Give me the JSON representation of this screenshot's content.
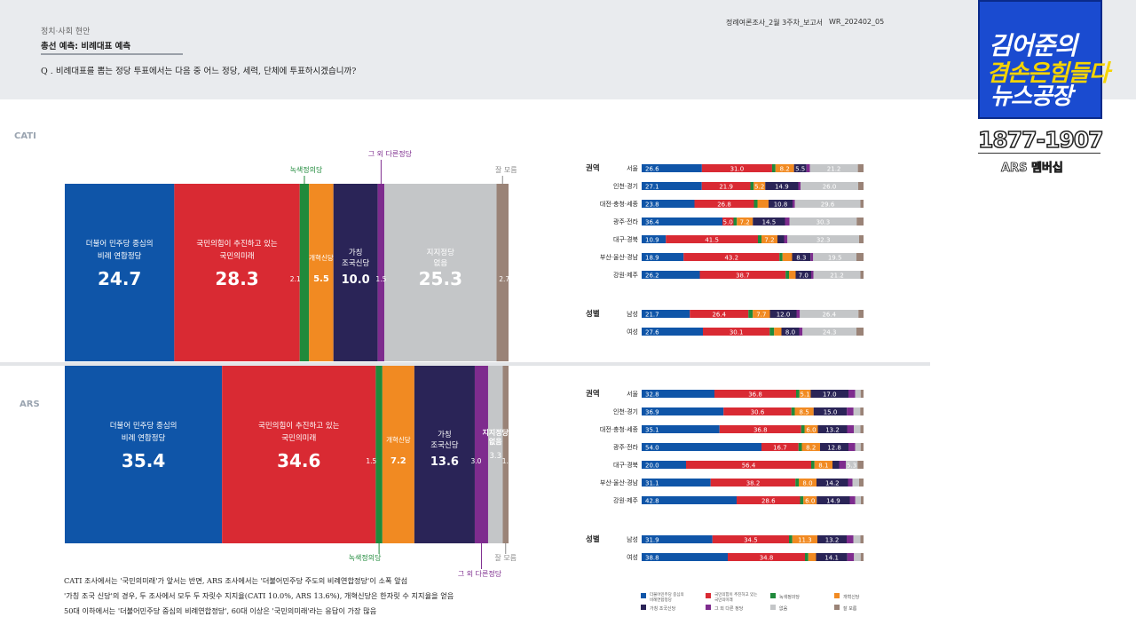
{
  "header": {
    "category": "정치·사회 현안",
    "subtitle": "총선 예측: 비례대표 예측",
    "question": "Q . 비례대표를 뽑는 정당 투표에서는 다음 중 어느 정당, 세력, 단체에 투표하시겠습니까?",
    "doc_title": "정례여론조사_2월 3주차_보고서",
    "doc_code": "WR_202402_05"
  },
  "logo": {
    "line1": "김어준의",
    "line2": "겸손은힘들다",
    "line3": "뉴스공장",
    "phone": "1877-1907",
    "member": "ARS 멤버십"
  },
  "notes": [
    "CATI 조사에서는 '국민의미래'가 앞서는 반면, ARS 조사에서는 '더불어민주당 주도의 비례연합정당'이 소폭 앞섬",
    "'가칭 조국 신당'의 경우, 두 조사에서 모두 두 자릿수 지지율(CATI 10.0%, ARS 13.6%), 개혁신당은 한자릿 수 지지율을 얻음",
    "50대 이하에서는 '더불어민주당 중심의 비례연합정당', 60대 이상은 '국민의미래'라는 응답이 가장 많음"
  ],
  "colors": [
    "#0f55a8",
    "#d92a33",
    "#1f8a3b",
    "#f18a22",
    "#2a2457",
    "#7e2c8e",
    "#c4c6c8",
    "#9a8377"
  ],
  "chart_data": [
    {
      "type": "bar",
      "orientation": "horizontal-stacked-100",
      "section": "CATI",
      "categories": [
        "더불어 민주당 중심의 비례 연합정당",
        "국민의힘이 추진하고 있는 국민의미래",
        "녹색정의당",
        "개혁신당",
        "가칭 조국신당",
        "그 외 다른정당",
        "지지정당 없음",
        "잘 모름"
      ],
      "values": [
        24.7,
        28.3,
        2.1,
        5.5,
        10.0,
        1.5,
        25.3,
        2.7
      ],
      "labels": {
        "minjoo": [
          "더불어 민주당 중심의",
          "비례 연합정당"
        ],
        "ppp": [
          "국민의힘이 추진하고 있는",
          "국민의미래"
        ],
        "green": "녹색정의당",
        "reform": "개혁신당",
        "cho": [
          "가칭",
          "조국신당"
        ],
        "other": "그 외 다른정당",
        "none": [
          "지지정당",
          "없음"
        ],
        "dk": "잘 모름"
      }
    },
    {
      "type": "bar",
      "orientation": "horizontal-stacked-100",
      "section": "ARS",
      "categories": [
        "더불어 민주당 중심의 비례 연합정당",
        "국민의힘이 추진하고 있는 국민의미래",
        "녹색정의당",
        "개혁신당",
        "가칭 조국신당",
        "그 외 다른정당",
        "지지정당 없음",
        "잘 모름"
      ],
      "values": [
        35.4,
        34.6,
        1.5,
        7.2,
        13.6,
        3.0,
        3.3,
        1.3
      ],
      "labels": {
        "minjoo": [
          "더불어 민주당 중심의",
          "비례 연합정당"
        ],
        "ppp": [
          "국민의힘이 추진하고 있는",
          "국민의미래"
        ],
        "green": "녹색정의당",
        "reform": "개혁신당",
        "cho": [
          "가칭",
          "조국신당"
        ],
        "other": "그 외 다른정당",
        "none": [
          "지지정당",
          "없음"
        ],
        "dk": "잘 모름"
      }
    },
    {
      "type": "bar",
      "orientation": "horizontal-stacked-100",
      "section": "CATI",
      "groups": [
        {
          "title": "권역",
          "rows": [
            {
              "label": "서울",
              "values": [
                26.6,
                31.0,
                1.5,
                8.2,
                5.5,
                1.5,
                21.2,
                2.5
              ]
            },
            {
              "label": "인천·경기",
              "values": [
                27.1,
                21.9,
                1.5,
                5.2,
                14.9,
                1.0,
                26.0,
                2.4
              ]
            },
            {
              "label": "대전·충청·세종",
              "values": [
                23.8,
                26.8,
                1.6,
                5.0,
                10.8,
                1.0,
                29.6,
                1.4
              ]
            },
            {
              "label": "광주·전라",
              "values": [
                36.4,
                5.0,
                1.5,
                7.2,
                14.5,
                2.0,
                30.3,
                3.1
              ]
            },
            {
              "label": "대구·경북",
              "values": [
                10.9,
                41.5,
                1.6,
                7.2,
                3.0,
                1.5,
                32.3,
                2.0
              ]
            },
            {
              "label": "부산·울산·경남",
              "values": [
                18.9,
                43.2,
                1.4,
                4.3,
                8.3,
                1.2,
                19.5,
                3.2
              ]
            },
            {
              "label": "강원·제주",
              "values": [
                26.2,
                38.7,
                1.5,
                3.0,
                7.0,
                1.0,
                21.2,
                1.4
              ]
            }
          ]
        },
        {
          "title": "성별",
          "rows": [
            {
              "label": "남성",
              "values": [
                21.7,
                26.4,
                2.0,
                7.7,
                12.0,
                1.5,
                26.4,
                2.3
              ]
            },
            {
              "label": "여성",
              "values": [
                27.6,
                30.1,
                2.0,
                3.3,
                8.0,
                1.5,
                24.3,
                3.2
              ]
            }
          ]
        }
      ],
      "shown_labels": [
        [
          "26.6",
          "31.0",
          "",
          "8.2",
          "5.5",
          "",
          "21.2",
          ""
        ],
        [
          "27.1",
          "21.9",
          "",
          "5.2",
          "14.9",
          "",
          "26.0",
          ""
        ],
        [
          "23.8",
          "26.8",
          "",
          "",
          "10.8",
          "",
          "29.6",
          ""
        ],
        [
          "36.4",
          "5.0",
          "",
          "7.2",
          "14.5",
          "",
          "30.3",
          ""
        ],
        [
          "10.9",
          "41.5",
          "",
          "7.2",
          "",
          "",
          "32.3",
          ""
        ],
        [
          "18.9",
          "43.2",
          "",
          "",
          "8.3",
          "",
          "19.5",
          ""
        ],
        [
          "26.2",
          "38.7",
          "",
          "",
          "7.0",
          "",
          "21.2",
          ""
        ],
        [
          "21.7",
          "26.4",
          "",
          "7.7",
          "12.0",
          "",
          "26.4",
          ""
        ],
        [
          "27.6",
          "30.1",
          "",
          "",
          "8.0",
          "",
          "24.3",
          ""
        ]
      ]
    },
    {
      "type": "bar",
      "orientation": "horizontal-stacked-100",
      "section": "ARS",
      "groups": [
        {
          "title": "권역",
          "rows": [
            {
              "label": "서울",
              "values": [
                32.8,
                36.8,
                1.5,
                5.1,
                17.0,
                3.0,
                2.5,
                1.3
              ]
            },
            {
              "label": "인천·경기",
              "values": [
                36.9,
                30.6,
                1.5,
                8.5,
                15.0,
                3.0,
                3.0,
                1.5
              ]
            },
            {
              "label": "대전·충청·세종",
              "values": [
                35.1,
                36.8,
                1.5,
                6.0,
                13.2,
                3.0,
                3.0,
                1.4
              ]
            },
            {
              "label": "광주·전라",
              "values": [
                54.0,
                16.7,
                1.5,
                8.2,
                12.8,
                3.0,
                2.5,
                1.3
              ]
            },
            {
              "label": "대구·경북",
              "values": [
                20.0,
                56.4,
                1.5,
                8.1,
                3.0,
                3.0,
                5.3,
                2.7
              ]
            },
            {
              "label": "부산·울산·경남",
              "values": [
                31.1,
                38.2,
                1.5,
                8.0,
                14.2,
                2.0,
                3.0,
                2.0
              ]
            },
            {
              "label": "강원·제주",
              "values": [
                42.8,
                28.6,
                1.5,
                6.0,
                14.9,
                2.5,
                2.5,
                1.2
              ]
            }
          ]
        },
        {
          "title": "성별",
          "rows": [
            {
              "label": "남성",
              "values": [
                31.9,
                34.5,
                1.5,
                11.3,
                13.2,
                3.0,
                3.2,
                1.4
              ]
            },
            {
              "label": "여성",
              "values": [
                38.8,
                34.8,
                1.5,
                3.5,
                14.1,
                3.0,
                3.0,
                1.3
              ]
            }
          ]
        }
      ],
      "shown_labels": [
        [
          "32.8",
          "36.8",
          "",
          "5.1",
          "17.0",
          "",
          "",
          ""
        ],
        [
          "36.9",
          "30.6",
          "",
          "8.5",
          "15.0",
          "",
          "",
          ""
        ],
        [
          "35.1",
          "36.8",
          "",
          "6.0",
          "13.2",
          "",
          "",
          ""
        ],
        [
          "54.0",
          "16.7",
          "",
          "8.2",
          "12.8",
          "",
          "",
          ""
        ],
        [
          "20.0",
          "56.4",
          "",
          "8.1",
          "",
          "",
          "5.3",
          ""
        ],
        [
          "31.1",
          "38.2",
          "",
          "8.0",
          "14.2",
          "",
          "",
          ""
        ],
        [
          "42.8",
          "28.6",
          "",
          "6.0",
          "14.9",
          "",
          "",
          ""
        ],
        [
          "31.9",
          "34.5",
          "",
          "11.3",
          "13.2",
          "",
          "",
          ""
        ],
        [
          "38.8",
          "34.8",
          "",
          "",
          "14.1",
          "",
          "",
          ""
        ]
      ]
    }
  ],
  "legend": [
    [
      "더불어민주당 중심의",
      "비례연합정당"
    ],
    [
      "국민의힘이 추진하고 있는",
      "국민의미래"
    ],
    [
      "녹색정의당"
    ],
    [
      "개혁신당"
    ],
    [
      "가칭 조국신당"
    ],
    [
      "그 외 다른 정당"
    ],
    [
      "없음"
    ],
    [
      "잘 모름"
    ]
  ]
}
